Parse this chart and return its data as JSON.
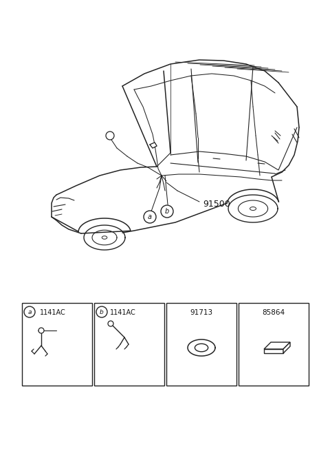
{
  "fig_bg": "#ffffff",
  "car_label": "91500",
  "part1_code": "1141AC",
  "part2_code": "1141AC",
  "part3_code": "91713",
  "part4_code": "85864",
  "box_color": "#222222",
  "text_color": "#111111",
  "line_color": "#222222"
}
